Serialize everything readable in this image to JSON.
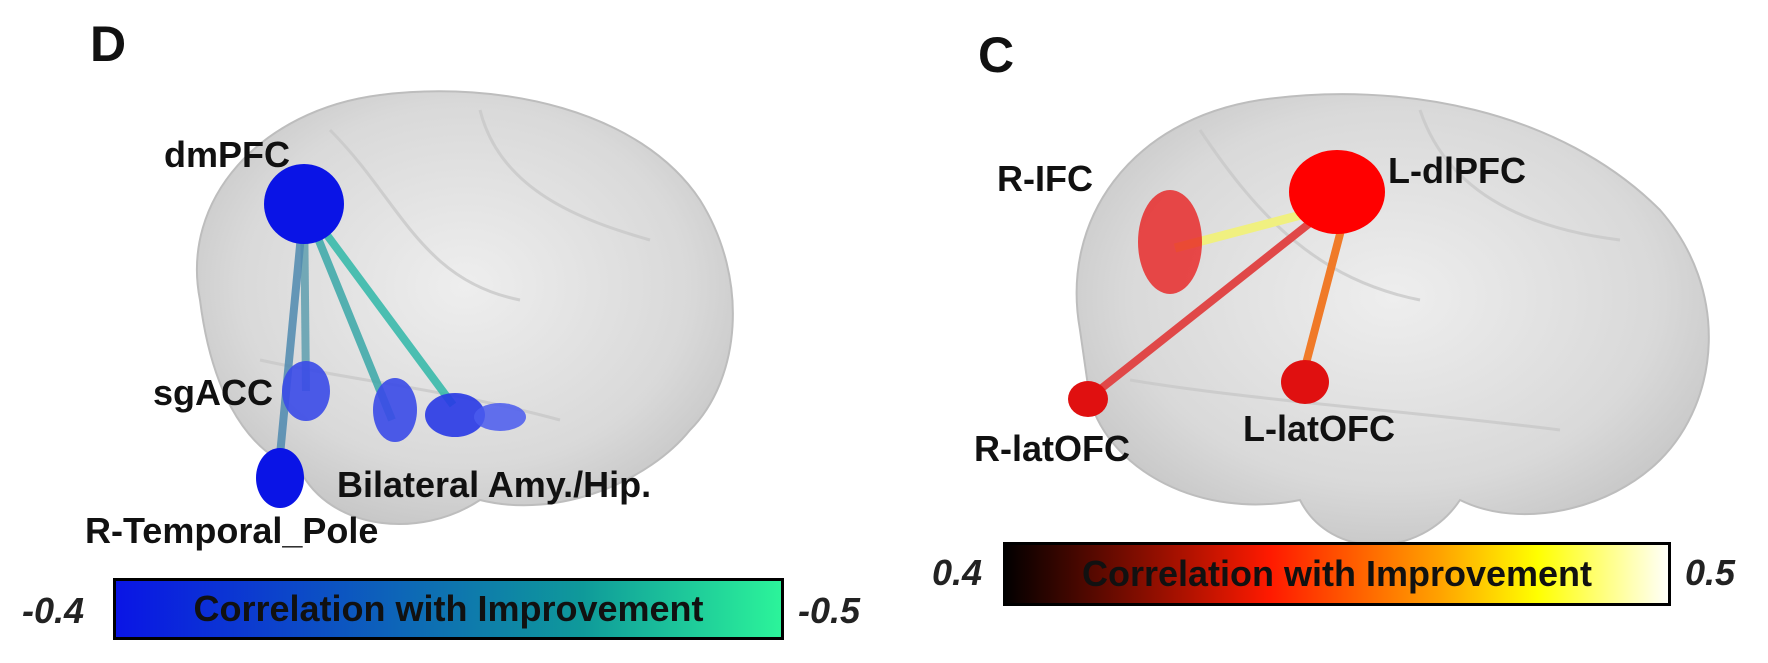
{
  "panels": [
    {
      "letter": "D",
      "regions": [
        "dmPFC",
        "sgACC",
        "R-Temporal_Pole",
        "Bilateral Amy./Hip."
      ],
      "colorbar": {
        "label": "Correlation with Improvement",
        "min": "-0.4",
        "max": "-0.5",
        "colors": [
          "#0a14e6",
          "#16c98a",
          "#2cf59a"
        ]
      }
    },
    {
      "letter": "C",
      "regions": [
        "R-IFC",
        "L-dlPFC",
        "R-latOFC",
        "L-latOFC"
      ],
      "colorbar": {
        "label": "Correlation with Improvement",
        "min": "0.4",
        "max": "0.5",
        "colors": [
          "#000000",
          "#ff1a00",
          "#ffa000",
          "#ffff00",
          "#ffffff"
        ]
      }
    }
  ]
}
